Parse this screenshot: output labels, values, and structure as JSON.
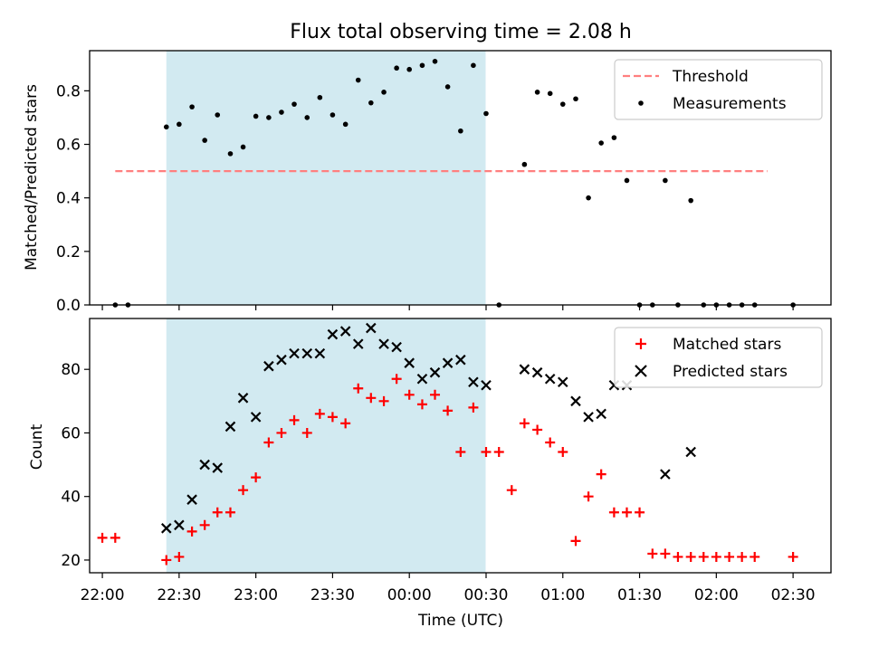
{
  "chart_data": [
    {
      "type": "scatter",
      "title": "Flux total observing time = 2.08 h",
      "xlabel": "",
      "ylabel": "Matched/Predicted stars",
      "xlim": [
        -0.25,
        4.58
      ],
      "ylim": [
        0.0,
        0.95
      ],
      "yticks": [
        0.0,
        0.2,
        0.4,
        0.6,
        0.8
      ],
      "ytick_labels": [
        "0.0",
        "0.2",
        "0.4",
        "0.6",
        "0.8"
      ],
      "shaded_span": {
        "x0": 0.25,
        "x1": 2.33,
        "color": "#add8e6"
      },
      "threshold": {
        "name": "Threshold",
        "y": 0.5,
        "x0": -0.083,
        "x1": 4.167,
        "color": "#ff7f7f",
        "style": "dashed"
      },
      "legend": {
        "placement": "upper right",
        "entries": [
          "Threshold",
          "Measurements"
        ]
      },
      "series": [
        {
          "name": "Measurements",
          "marker": "dot",
          "color": "#000000",
          "x": [
            -0.083,
            0.0,
            0.25,
            0.333,
            0.417,
            0.5,
            0.583,
            0.667,
            0.75,
            0.833,
            0.917,
            1.0,
            1.083,
            1.167,
            1.25,
            1.333,
            1.417,
            1.5,
            1.583,
            1.667,
            1.75,
            1.833,
            1.917,
            2.0,
            2.083,
            2.167,
            2.25,
            2.333,
            2.417,
            2.583,
            2.667,
            2.75,
            2.833,
            2.917,
            3.0,
            3.083,
            3.167,
            3.25,
            3.333,
            3.417,
            3.5,
            3.583,
            3.667,
            3.75,
            3.833,
            3.917,
            4.0,
            4.083,
            4.333
          ],
          "y": [
            0.0,
            0.0,
            0.665,
            0.675,
            0.74,
            0.615,
            0.71,
            0.565,
            0.59,
            0.705,
            0.7,
            0.72,
            0.75,
            0.7,
            0.775,
            0.71,
            0.675,
            0.84,
            0.755,
            0.795,
            0.885,
            0.88,
            0.895,
            0.91,
            0.815,
            0.65,
            0.895,
            0.715,
            0.0,
            0.525,
            0.795,
            0.79,
            0.75,
            0.77,
            0.4,
            0.605,
            0.625,
            0.465,
            0.0,
            0.0,
            0.465,
            0.0,
            0.39,
            0.0,
            0.0,
            0.0,
            0.0,
            0.0,
            0.0
          ]
        }
      ]
    },
    {
      "type": "scatter",
      "title": "",
      "xlabel": "Time (UTC)",
      "ylabel": "Count",
      "xlim": [
        -0.25,
        4.58
      ],
      "ylim": [
        16,
        96
      ],
      "yticks": [
        20,
        40,
        60,
        80
      ],
      "ytick_labels": [
        "20",
        "40",
        "60",
        "80"
      ],
      "xticks": [
        -0.167,
        0.333,
        0.833,
        1.333,
        1.833,
        2.333,
        2.833,
        3.333,
        3.833,
        4.333
      ],
      "xtick_labels": [
        "22:00",
        "22:30",
        "23:00",
        "23:30",
        "00:00",
        "00:30",
        "01:00",
        "01:30",
        "02:00",
        "02:30"
      ],
      "shaded_span": {
        "x0": 0.25,
        "x1": 2.33,
        "color": "#add8e6"
      },
      "legend": {
        "placement": "upper right",
        "entries": [
          "Matched stars",
          "Predicted stars"
        ]
      },
      "series": [
        {
          "name": "Matched stars",
          "marker": "plus",
          "color": "#ff0000",
          "x": [
            -0.167,
            -0.083,
            0.25,
            0.333,
            0.417,
            0.5,
            0.583,
            0.667,
            0.75,
            0.833,
            0.917,
            1.0,
            1.083,
            1.167,
            1.25,
            1.333,
            1.417,
            1.5,
            1.583,
            1.667,
            1.75,
            1.833,
            1.917,
            2.0,
            2.083,
            2.167,
            2.25,
            2.333,
            2.417,
            2.5,
            2.583,
            2.667,
            2.75,
            2.833,
            2.917,
            3.0,
            3.083,
            3.167,
            3.25,
            3.333,
            3.417,
            3.5,
            3.583,
            3.667,
            3.75,
            3.833,
            3.917,
            4.0,
            4.083,
            4.333
          ],
          "y": [
            27,
            27,
            20,
            21,
            29,
            31,
            35,
            35,
            42,
            46,
            57,
            60,
            64,
            60,
            66,
            65,
            63,
            74,
            71,
            70,
            77,
            72,
            69,
            72,
            67,
            54,
            68,
            54,
            54,
            42,
            63,
            61,
            57,
            54,
            26,
            40,
            47,
            35,
            35,
            35,
            22,
            22,
            21,
            21,
            21,
            21,
            21,
            21,
            21,
            21
          ]
        },
        {
          "name": "Predicted stars",
          "marker": "x",
          "color": "#000000",
          "x": [
            0.25,
            0.333,
            0.417,
            0.5,
            0.583,
            0.667,
            0.75,
            0.833,
            0.917,
            1.0,
            1.083,
            1.167,
            1.25,
            1.333,
            1.417,
            1.5,
            1.583,
            1.667,
            1.75,
            1.833,
            1.917,
            2.0,
            2.083,
            2.167,
            2.25,
            2.333,
            2.583,
            2.667,
            2.75,
            2.833,
            2.917,
            3.0,
            3.083,
            3.167,
            3.25,
            3.5,
            3.667
          ],
          "y": [
            30,
            31,
            39,
            50,
            49,
            62,
            71,
            65,
            81,
            83,
            85,
            85,
            85,
            91,
            92,
            88,
            93,
            88,
            87,
            82,
            77,
            79,
            82,
            83,
            76,
            75,
            80,
            79,
            77,
            76,
            70,
            65,
            66,
            75,
            75,
            47,
            54
          ]
        }
      ]
    }
  ]
}
